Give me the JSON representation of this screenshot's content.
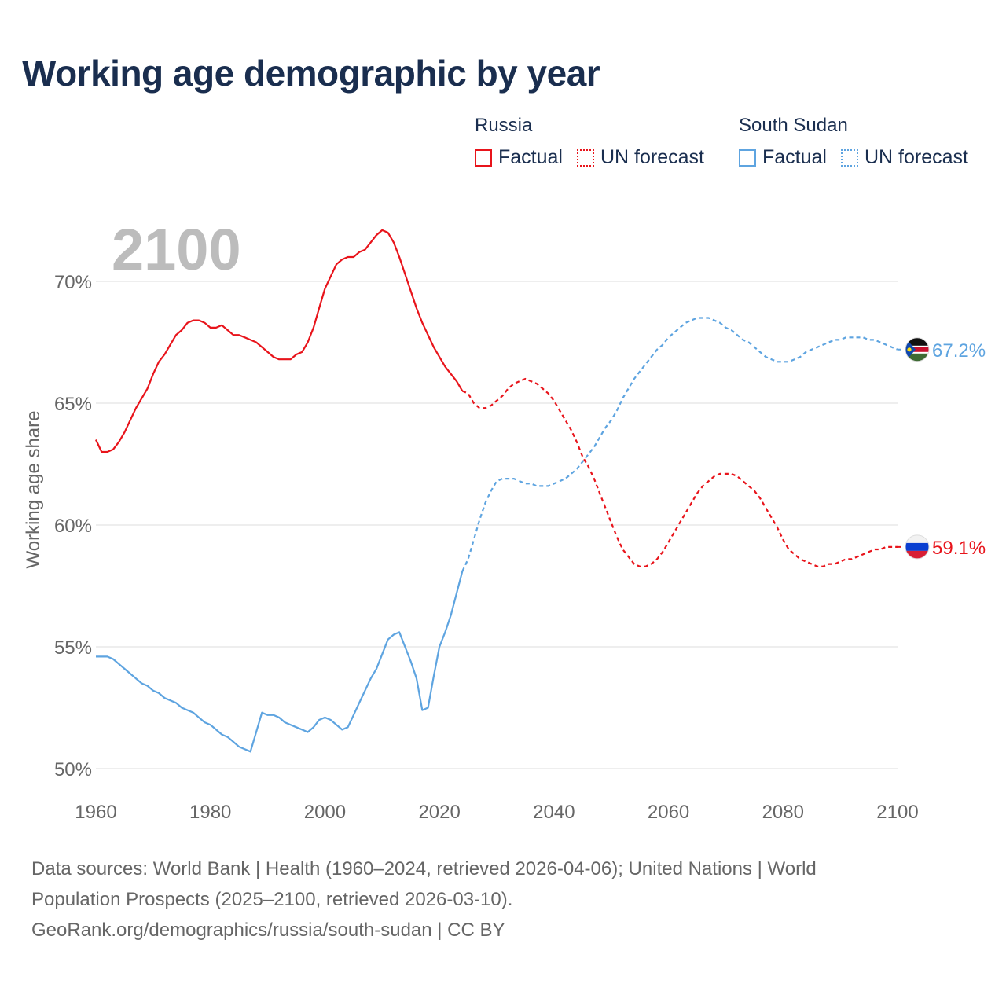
{
  "title": "Working age demographic by year",
  "legend": {
    "groups": [
      {
        "name": "Russia",
        "factual_label": "Factual",
        "forecast_label": "UN forecast",
        "color": "#e8141b"
      },
      {
        "name": "South Sudan",
        "factual_label": "Factual",
        "forecast_label": "UN forecast",
        "color": "#5ea4e0"
      }
    ]
  },
  "year_watermark": "2100",
  "colors": {
    "russia": "#e8141b",
    "south_sudan": "#5ea4e0",
    "grid": "#e3e3e3",
    "axis_text": "#666666",
    "watermark": "#bcbcbc"
  },
  "chart_data": {
    "type": "line",
    "title": "Working age demographic by year",
    "xlabel": "",
    "ylabel": "Working age share",
    "xlim": [
      1960,
      2100
    ],
    "ylim": [
      50,
      72
    ],
    "x_ticks": [
      1960,
      1980,
      2000,
      2020,
      2040,
      2060,
      2080,
      2100
    ],
    "y_ticks": [
      50,
      55,
      60,
      65,
      70
    ],
    "y_tick_labels": [
      "50%",
      "55%",
      "60%",
      "65%",
      "70%"
    ],
    "factual_range": [
      1960,
      2024
    ],
    "forecast_range": [
      2025,
      2100
    ],
    "series": [
      {
        "name": "Russia",
        "key": "russia",
        "end_label": "59.1%",
        "points": [
          [
            1960,
            63.5
          ],
          [
            1961,
            63.0
          ],
          [
            1962,
            63.0
          ],
          [
            1963,
            63.1
          ],
          [
            1964,
            63.4
          ],
          [
            1965,
            63.8
          ],
          [
            1966,
            64.3
          ],
          [
            1967,
            64.8
          ],
          [
            1968,
            65.2
          ],
          [
            1969,
            65.6
          ],
          [
            1970,
            66.2
          ],
          [
            1971,
            66.7
          ],
          [
            1972,
            67.0
          ],
          [
            1973,
            67.4
          ],
          [
            1974,
            67.8
          ],
          [
            1975,
            68.0
          ],
          [
            1976,
            68.3
          ],
          [
            1977,
            68.4
          ],
          [
            1978,
            68.4
          ],
          [
            1979,
            68.3
          ],
          [
            1980,
            68.1
          ],
          [
            1981,
            68.1
          ],
          [
            1982,
            68.2
          ],
          [
            1983,
            68.0
          ],
          [
            1984,
            67.8
          ],
          [
            1985,
            67.8
          ],
          [
            1986,
            67.7
          ],
          [
            1987,
            67.6
          ],
          [
            1988,
            67.5
          ],
          [
            1989,
            67.3
          ],
          [
            1990,
            67.1
          ],
          [
            1991,
            66.9
          ],
          [
            1992,
            66.8
          ],
          [
            1993,
            66.8
          ],
          [
            1994,
            66.8
          ],
          [
            1995,
            67.0
          ],
          [
            1996,
            67.1
          ],
          [
            1997,
            67.5
          ],
          [
            1998,
            68.1
          ],
          [
            1999,
            68.9
          ],
          [
            2000,
            69.7
          ],
          [
            2001,
            70.2
          ],
          [
            2002,
            70.7
          ],
          [
            2003,
            70.9
          ],
          [
            2004,
            71.0
          ],
          [
            2005,
            71.0
          ],
          [
            2006,
            71.2
          ],
          [
            2007,
            71.3
          ],
          [
            2008,
            71.6
          ],
          [
            2009,
            71.9
          ],
          [
            2010,
            72.1
          ],
          [
            2011,
            72.0
          ],
          [
            2012,
            71.6
          ],
          [
            2013,
            71.0
          ],
          [
            2014,
            70.3
          ],
          [
            2015,
            69.6
          ],
          [
            2016,
            68.9
          ],
          [
            2017,
            68.3
          ],
          [
            2018,
            67.8
          ],
          [
            2019,
            67.3
          ],
          [
            2020,
            66.9
          ],
          [
            2021,
            66.5
          ],
          [
            2022,
            66.2
          ],
          [
            2023,
            65.9
          ],
          [
            2024,
            65.5
          ],
          [
            2025,
            65.4
          ],
          [
            2026,
            65.0
          ],
          [
            2027,
            64.8
          ],
          [
            2028,
            64.8
          ],
          [
            2029,
            64.9
          ],
          [
            2030,
            65.1
          ],
          [
            2031,
            65.3
          ],
          [
            2032,
            65.6
          ],
          [
            2033,
            65.8
          ],
          [
            2034,
            65.9
          ],
          [
            2035,
            66.0
          ],
          [
            2036,
            65.9
          ],
          [
            2037,
            65.8
          ],
          [
            2038,
            65.6
          ],
          [
            2039,
            65.4
          ],
          [
            2040,
            65.1
          ],
          [
            2041,
            64.7
          ],
          [
            2042,
            64.3
          ],
          [
            2043,
            63.9
          ],
          [
            2044,
            63.4
          ],
          [
            2045,
            62.8
          ],
          [
            2046,
            62.4
          ],
          [
            2047,
            61.9
          ],
          [
            2048,
            61.3
          ],
          [
            2049,
            60.7
          ],
          [
            2050,
            60.1
          ],
          [
            2051,
            59.5
          ],
          [
            2052,
            59.0
          ],
          [
            2053,
            58.7
          ],
          [
            2054,
            58.4
          ],
          [
            2055,
            58.3
          ],
          [
            2056,
            58.3
          ],
          [
            2057,
            58.4
          ],
          [
            2058,
            58.6
          ],
          [
            2059,
            58.9
          ],
          [
            2060,
            59.3
          ],
          [
            2061,
            59.7
          ],
          [
            2062,
            60.1
          ],
          [
            2063,
            60.5
          ],
          [
            2064,
            60.9
          ],
          [
            2065,
            61.3
          ],
          [
            2066,
            61.6
          ],
          [
            2067,
            61.8
          ],
          [
            2068,
            62.0
          ],
          [
            2069,
            62.1
          ],
          [
            2070,
            62.1
          ],
          [
            2071,
            62.1
          ],
          [
            2072,
            62.0
          ],
          [
            2073,
            61.8
          ],
          [
            2074,
            61.6
          ],
          [
            2075,
            61.4
          ],
          [
            2076,
            61.1
          ],
          [
            2077,
            60.7
          ],
          [
            2078,
            60.3
          ],
          [
            2079,
            59.9
          ],
          [
            2080,
            59.4
          ],
          [
            2081,
            59.0
          ],
          [
            2082,
            58.8
          ],
          [
            2083,
            58.6
          ],
          [
            2084,
            58.5
          ],
          [
            2085,
            58.4
          ],
          [
            2086,
            58.3
          ],
          [
            2087,
            58.3
          ],
          [
            2088,
            58.4
          ],
          [
            2089,
            58.4
          ],
          [
            2090,
            58.5
          ],
          [
            2091,
            58.6
          ],
          [
            2092,
            58.6
          ],
          [
            2093,
            58.7
          ],
          [
            2094,
            58.8
          ],
          [
            2095,
            58.9
          ],
          [
            2096,
            59.0
          ],
          [
            2097,
            59.0
          ],
          [
            2098,
            59.1
          ],
          [
            2099,
            59.1
          ],
          [
            2100,
            59.1
          ]
        ]
      },
      {
        "name": "South Sudan",
        "key": "south_sudan",
        "end_label": "67.2%",
        "points": [
          [
            1960,
            54.6
          ],
          [
            1961,
            54.6
          ],
          [
            1962,
            54.6
          ],
          [
            1963,
            54.5
          ],
          [
            1964,
            54.3
          ],
          [
            1965,
            54.1
          ],
          [
            1966,
            53.9
          ],
          [
            1967,
            53.7
          ],
          [
            1968,
            53.5
          ],
          [
            1969,
            53.4
          ],
          [
            1970,
            53.2
          ],
          [
            1971,
            53.1
          ],
          [
            1972,
            52.9
          ],
          [
            1973,
            52.8
          ],
          [
            1974,
            52.7
          ],
          [
            1975,
            52.5
          ],
          [
            1976,
            52.4
          ],
          [
            1977,
            52.3
          ],
          [
            1978,
            52.1
          ],
          [
            1979,
            51.9
          ],
          [
            1980,
            51.8
          ],
          [
            1981,
            51.6
          ],
          [
            1982,
            51.4
          ],
          [
            1983,
            51.3
          ],
          [
            1984,
            51.1
          ],
          [
            1985,
            50.9
          ],
          [
            1986,
            50.8
          ],
          [
            1987,
            50.7
          ],
          [
            1988,
            51.5
          ],
          [
            1989,
            52.3
          ],
          [
            1990,
            52.2
          ],
          [
            1991,
            52.2
          ],
          [
            1992,
            52.1
          ],
          [
            1993,
            51.9
          ],
          [
            1994,
            51.8
          ],
          [
            1995,
            51.7
          ],
          [
            1996,
            51.6
          ],
          [
            1997,
            51.5
          ],
          [
            1998,
            51.7
          ],
          [
            1999,
            52.0
          ],
          [
            2000,
            52.1
          ],
          [
            2001,
            52.0
          ],
          [
            2002,
            51.8
          ],
          [
            2003,
            51.6
          ],
          [
            2004,
            51.7
          ],
          [
            2005,
            52.2
          ],
          [
            2006,
            52.7
          ],
          [
            2007,
            53.2
          ],
          [
            2008,
            53.7
          ],
          [
            2009,
            54.1
          ],
          [
            2010,
            54.7
          ],
          [
            2011,
            55.3
          ],
          [
            2012,
            55.5
          ],
          [
            2013,
            55.6
          ],
          [
            2014,
            55.0
          ],
          [
            2015,
            54.4
          ],
          [
            2016,
            53.7
          ],
          [
            2017,
            52.4
          ],
          [
            2018,
            52.5
          ],
          [
            2019,
            53.8
          ],
          [
            2020,
            55.0
          ],
          [
            2021,
            55.6
          ],
          [
            2022,
            56.3
          ],
          [
            2023,
            57.2
          ],
          [
            2024,
            58.1
          ],
          [
            2025,
            58.6
          ],
          [
            2026,
            59.4
          ],
          [
            2027,
            60.2
          ],
          [
            2028,
            60.9
          ],
          [
            2029,
            61.4
          ],
          [
            2030,
            61.8
          ],
          [
            2031,
            61.9
          ],
          [
            2032,
            61.9
          ],
          [
            2033,
            61.9
          ],
          [
            2034,
            61.8
          ],
          [
            2035,
            61.7
          ],
          [
            2036,
            61.7
          ],
          [
            2037,
            61.6
          ],
          [
            2038,
            61.6
          ],
          [
            2039,
            61.6
          ],
          [
            2040,
            61.7
          ],
          [
            2041,
            61.8
          ],
          [
            2042,
            61.9
          ],
          [
            2043,
            62.1
          ],
          [
            2044,
            62.3
          ],
          [
            2045,
            62.6
          ],
          [
            2046,
            62.9
          ],
          [
            2047,
            63.2
          ],
          [
            2048,
            63.6
          ],
          [
            2049,
            64.0
          ],
          [
            2050,
            64.3
          ],
          [
            2051,
            64.7
          ],
          [
            2052,
            65.2
          ],
          [
            2053,
            65.6
          ],
          [
            2054,
            66.0
          ],
          [
            2055,
            66.3
          ],
          [
            2056,
            66.6
          ],
          [
            2057,
            66.9
          ],
          [
            2058,
            67.2
          ],
          [
            2059,
            67.4
          ],
          [
            2060,
            67.7
          ],
          [
            2061,
            67.9
          ],
          [
            2062,
            68.1
          ],
          [
            2063,
            68.3
          ],
          [
            2064,
            68.4
          ],
          [
            2065,
            68.5
          ],
          [
            2066,
            68.5
          ],
          [
            2067,
            68.5
          ],
          [
            2068,
            68.4
          ],
          [
            2069,
            68.3
          ],
          [
            2070,
            68.1
          ],
          [
            2071,
            68.0
          ],
          [
            2072,
            67.8
          ],
          [
            2073,
            67.6
          ],
          [
            2074,
            67.5
          ],
          [
            2075,
            67.3
          ],
          [
            2076,
            67.1
          ],
          [
            2077,
            66.9
          ],
          [
            2078,
            66.8
          ],
          [
            2079,
            66.7
          ],
          [
            2080,
            66.7
          ],
          [
            2081,
            66.7
          ],
          [
            2082,
            66.8
          ],
          [
            2083,
            66.9
          ],
          [
            2084,
            67.1
          ],
          [
            2085,
            67.2
          ],
          [
            2086,
            67.3
          ],
          [
            2087,
            67.4
          ],
          [
            2088,
            67.5
          ],
          [
            2089,
            67.6
          ],
          [
            2090,
            67.6
          ],
          [
            2091,
            67.7
          ],
          [
            2092,
            67.7
          ],
          [
            2093,
            67.7
          ],
          [
            2094,
            67.7
          ],
          [
            2095,
            67.6
          ],
          [
            2096,
            67.6
          ],
          [
            2097,
            67.5
          ],
          [
            2098,
            67.4
          ],
          [
            2099,
            67.3
          ],
          [
            2100,
            67.2
          ]
        ]
      }
    ]
  },
  "footer": {
    "line1": "Data sources: World Bank | Health (1960–2024, retrieved 2026-04-06); United Nations | World",
    "line2": "Population Prospects (2025–2100, retrieved 2026-03-10).",
    "line3": "GeoRank.org/demographics/russia/south-sudan | CC BY"
  }
}
